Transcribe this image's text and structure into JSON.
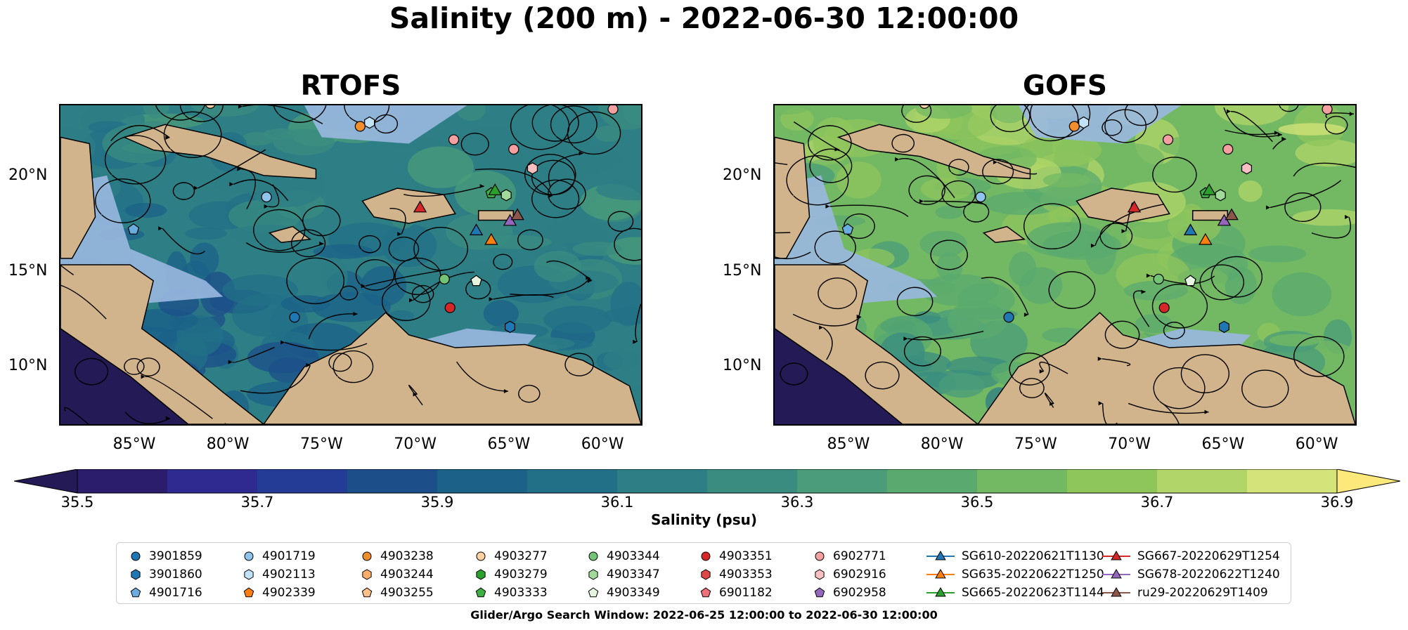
{
  "title": "Salinity (200 m) - 2022-06-30 12:00:00",
  "footnote": "Glider/Argo Search Window: 2022-06-25 12:00:00 to 2022-06-30 12:00:00",
  "colors": {
    "land": "#d2b48c",
    "shelf": "#9ab8e0",
    "ocean_low": "#2e1e6a",
    "ocean_high": "#fde97b"
  },
  "chart_data": [
    {
      "type": "heatmap",
      "title": "RTOFS",
      "x_ticks": [
        "85°W",
        "80°W",
        "75°W",
        "70°W",
        "65°W",
        "60°W"
      ],
      "x_tick_values": [
        -85,
        -80,
        -75,
        -70,
        -65,
        -60
      ],
      "y_ticks": [
        "10°N",
        "15°N",
        "20°N"
      ],
      "y_tick_values": [
        10,
        15,
        20
      ],
      "xlim": [
        -89,
        -58
      ],
      "ylim": [
        7.0,
        23.7
      ],
      "dominant_salinity_psu": 36.1
    },
    {
      "type": "heatmap",
      "title": "GOFS",
      "x_ticks": [
        "85°W",
        "80°W",
        "75°W",
        "70°W",
        "65°W",
        "60°W"
      ],
      "x_tick_values": [
        -85,
        -80,
        -75,
        -70,
        -65,
        -60
      ],
      "y_ticks": [
        "10°N",
        "15°N",
        "20°N"
      ],
      "y_tick_values": [
        10,
        15,
        20
      ],
      "xlim": [
        -89,
        -58
      ],
      "ylim": [
        7.0,
        23.7
      ],
      "dominant_salinity_psu": 36.5
    }
  ],
  "colorbar": {
    "label": "Salinity (psu)",
    "ticks": [
      "35.5",
      "35.7",
      "35.9",
      "36.1",
      "36.3",
      "36.5",
      "36.7",
      "36.9"
    ],
    "min": 35.5,
    "max": 36.9,
    "levels": 14,
    "colors": [
      "#2b1d6b",
      "#2f2a8f",
      "#253c96",
      "#1c4f8a",
      "#1b6188",
      "#227087",
      "#2d7e85",
      "#3a8c80",
      "#4a9c7a",
      "#5aaa6f",
      "#73b863",
      "#8fc65c",
      "#b2d56a",
      "#d5e47a"
    ],
    "extend_low": "#241a55",
    "extend_high": "#fde97b"
  },
  "legend": [
    {
      "label": "3901859",
      "marker": "circle",
      "color": "#1f77b4"
    },
    {
      "label": "3901860",
      "marker": "hexagon",
      "color": "#1f77b4"
    },
    {
      "label": "4901716",
      "marker": "pentagon",
      "color": "#6aaee0"
    },
    {
      "label": "4901719",
      "marker": "circle",
      "color": "#8ec4ee"
    },
    {
      "label": "4902113",
      "marker": "hexagon",
      "color": "#c2e2f7"
    },
    {
      "label": "4902339",
      "marker": "pentagon",
      "color": "#ff7f0e"
    },
    {
      "label": "4903238",
      "marker": "circle",
      "color": "#f28e2b"
    },
    {
      "label": "4903244",
      "marker": "hexagon",
      "color": "#fdae6b"
    },
    {
      "label": "4903255",
      "marker": "pentagon",
      "color": "#fdc088"
    },
    {
      "label": "4903277",
      "marker": "circle",
      "color": "#fdd0a2"
    },
    {
      "label": "4903279",
      "marker": "hexagon",
      "color": "#2ca02c"
    },
    {
      "label": "4903333",
      "marker": "pentagon",
      "color": "#3cb043"
    },
    {
      "label": "4903344",
      "marker": "circle",
      "color": "#74c476"
    },
    {
      "label": "4903347",
      "marker": "hexagon",
      "color": "#a1d99b"
    },
    {
      "label": "4903349",
      "marker": "pentagon",
      "color": "#e5f5e0"
    },
    {
      "label": "4903351",
      "marker": "circle",
      "color": "#d62728"
    },
    {
      "label": "4903353",
      "marker": "hexagon",
      "color": "#e04848"
    },
    {
      "label": "6901182",
      "marker": "pentagon",
      "color": "#f0707a"
    },
    {
      "label": "6902771",
      "marker": "circle",
      "color": "#f4a0a0"
    },
    {
      "label": "6902916",
      "marker": "hexagon",
      "color": "#f8c0c0"
    },
    {
      "label": "6902958",
      "marker": "pentagon",
      "color": "#9467bd"
    },
    {
      "label": "SG610-20220621T1130",
      "marker": "triangle-line",
      "color": "#1f77b4"
    },
    {
      "label": "SG635-20220622T1250",
      "marker": "triangle-line",
      "color": "#ff7f0e"
    },
    {
      "label": "SG665-20220623T1144",
      "marker": "triangle-line",
      "color": "#2ca02c"
    },
    {
      "label": "SG667-20220629T1254",
      "marker": "triangle-line",
      "color": "#d62728"
    },
    {
      "label": "SG678-20220622T1240",
      "marker": "triangle-line",
      "color": "#9467bd"
    },
    {
      "label": "ru29-20220629T1409",
      "marker": "triangle-line",
      "color": "#8c564b"
    }
  ],
  "observations": [
    {
      "id": "3901859",
      "lon": -76.5,
      "lat": 12.6,
      "marker": "circle",
      "color": "#1f77b4"
    },
    {
      "id": "3901860",
      "lon": -65.0,
      "lat": 12.1,
      "marker": "hexagon",
      "color": "#1f77b4"
    },
    {
      "id": "4901716",
      "lon": -85.1,
      "lat": 17.2,
      "marker": "pentagon",
      "color": "#6aaee0"
    },
    {
      "id": "4901719",
      "lon": -78.0,
      "lat": 18.9,
      "marker": "circle",
      "color": "#8ec4ee"
    },
    {
      "id": "4902113",
      "lon": -72.5,
      "lat": 22.8,
      "marker": "hexagon",
      "color": "#c2e2f7"
    },
    {
      "id": "4903238",
      "lon": -73.0,
      "lat": 22.6,
      "marker": "circle",
      "color": "#f28e2b"
    },
    {
      "id": "4903277",
      "lon": -81.0,
      "lat": 23.8,
      "marker": "circle",
      "color": "#fdd0a2"
    },
    {
      "id": "4903333",
      "lon": -66.0,
      "lat": 19.1,
      "marker": "pentagon",
      "color": "#3cb043"
    },
    {
      "id": "4903344",
      "lon": -68.5,
      "lat": 14.6,
      "marker": "circle",
      "color": "#74c476"
    },
    {
      "id": "4903347",
      "lon": -65.2,
      "lat": 19.0,
      "marker": "hexagon",
      "color": "#a1d99b"
    },
    {
      "id": "4903349",
      "lon": -66.8,
      "lat": 14.5,
      "marker": "pentagon",
      "color": "#e5f5e0"
    },
    {
      "id": "4903351",
      "lon": -68.2,
      "lat": 13.1,
      "marker": "circle",
      "color": "#d62728"
    },
    {
      "id": "6902771",
      "lon": -68.0,
      "lat": 21.9,
      "marker": "circle",
      "color": "#f4a0a0"
    },
    {
      "id": "6902916",
      "lon": -63.8,
      "lat": 20.4,
      "marker": "hexagon",
      "color": "#f8c0c0"
    },
    {
      "id": "6902916b",
      "lon": -59.5,
      "lat": 23.5,
      "marker": "circle",
      "color": "#f4a0a0"
    },
    {
      "id": "6902916c",
      "lon": -64.8,
      "lat": 21.4,
      "marker": "circle",
      "color": "#f4a0a0"
    },
    {
      "id": "SG610",
      "lon": -66.8,
      "lat": 17.1,
      "marker": "triangle",
      "color": "#1f77b4"
    },
    {
      "id": "SG635",
      "lon": -66.0,
      "lat": 16.6,
      "marker": "triangle",
      "color": "#ff7f0e"
    },
    {
      "id": "SG665",
      "lon": -65.8,
      "lat": 19.2,
      "marker": "triangle",
      "color": "#2ca02c"
    },
    {
      "id": "SG667",
      "lon": -69.8,
      "lat": 18.3,
      "marker": "triangle",
      "color": "#d62728"
    },
    {
      "id": "SG678",
      "lon": -65.0,
      "lat": 17.6,
      "marker": "triangle",
      "color": "#9467bd"
    },
    {
      "id": "ru29",
      "lon": -64.6,
      "lat": 17.9,
      "marker": "triangle",
      "color": "#8c564b"
    }
  ]
}
